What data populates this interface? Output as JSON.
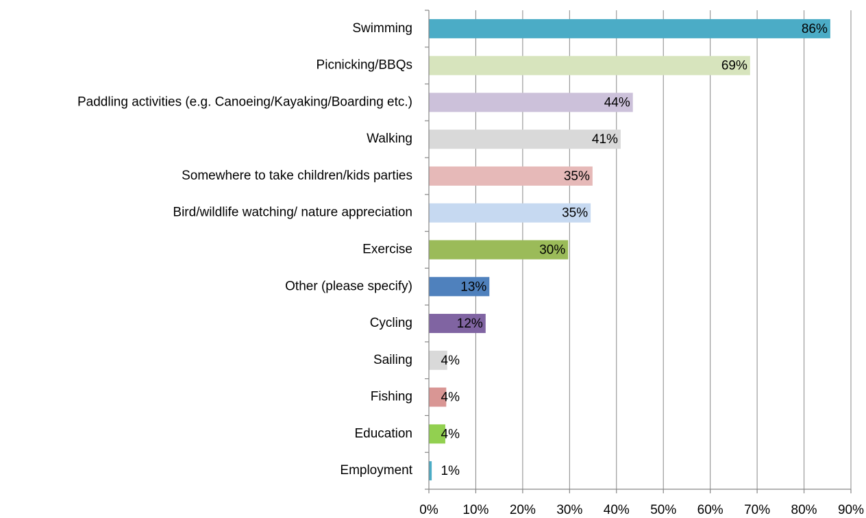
{
  "chart_data": {
    "type": "bar",
    "categories": [
      "Swimming",
      "Picnicking/BBQs",
      "Paddling activities (e.g. Canoeing/Kayaking/Boarding etc.)",
      "Walking",
      "Somewhere to take children/kids parties",
      "Bird/wildlife watching/ nature appreciation",
      "Exercise",
      "Other (please specify)",
      "Cycling",
      "Sailing",
      "Fishing",
      "Education",
      "Employment"
    ],
    "values": [
      85.6,
      68.5,
      43.5,
      40.9,
      34.9,
      34.5,
      29.7,
      12.9,
      12.1,
      3.9,
      3.7,
      3.5,
      0.6
    ],
    "value_labels": [
      "86%",
      "69%",
      "44%",
      "41%",
      "35%",
      "35%",
      "30%",
      "13%",
      "12%",
      "4%",
      "4%",
      "4%",
      "1%"
    ],
    "colors": [
      "#4bacc6",
      "#d7e4bd",
      "#ccc1da",
      "#d9d9d9",
      "#e6b9b8",
      "#c6d9f1",
      "#9bbb59",
      "#4f81bd",
      "#8064a2",
      "#d9d9d9",
      "#d99694",
      "#92d050",
      "#4bacc6"
    ],
    "xlim": [
      0,
      90
    ],
    "xticks": [
      {
        "value": 0,
        "label": "0%"
      },
      {
        "value": 10,
        "label": "10%"
      },
      {
        "value": 20,
        "label": "20%"
      },
      {
        "value": 30,
        "label": "30%"
      },
      {
        "value": 40,
        "label": "40%"
      },
      {
        "value": 50,
        "label": "50%"
      },
      {
        "value": 60,
        "label": "60%"
      },
      {
        "value": 70,
        "label": "70%"
      },
      {
        "value": 80,
        "label": "80%"
      },
      {
        "value": 90,
        "label": "90%"
      }
    ],
    "grid": true
  }
}
